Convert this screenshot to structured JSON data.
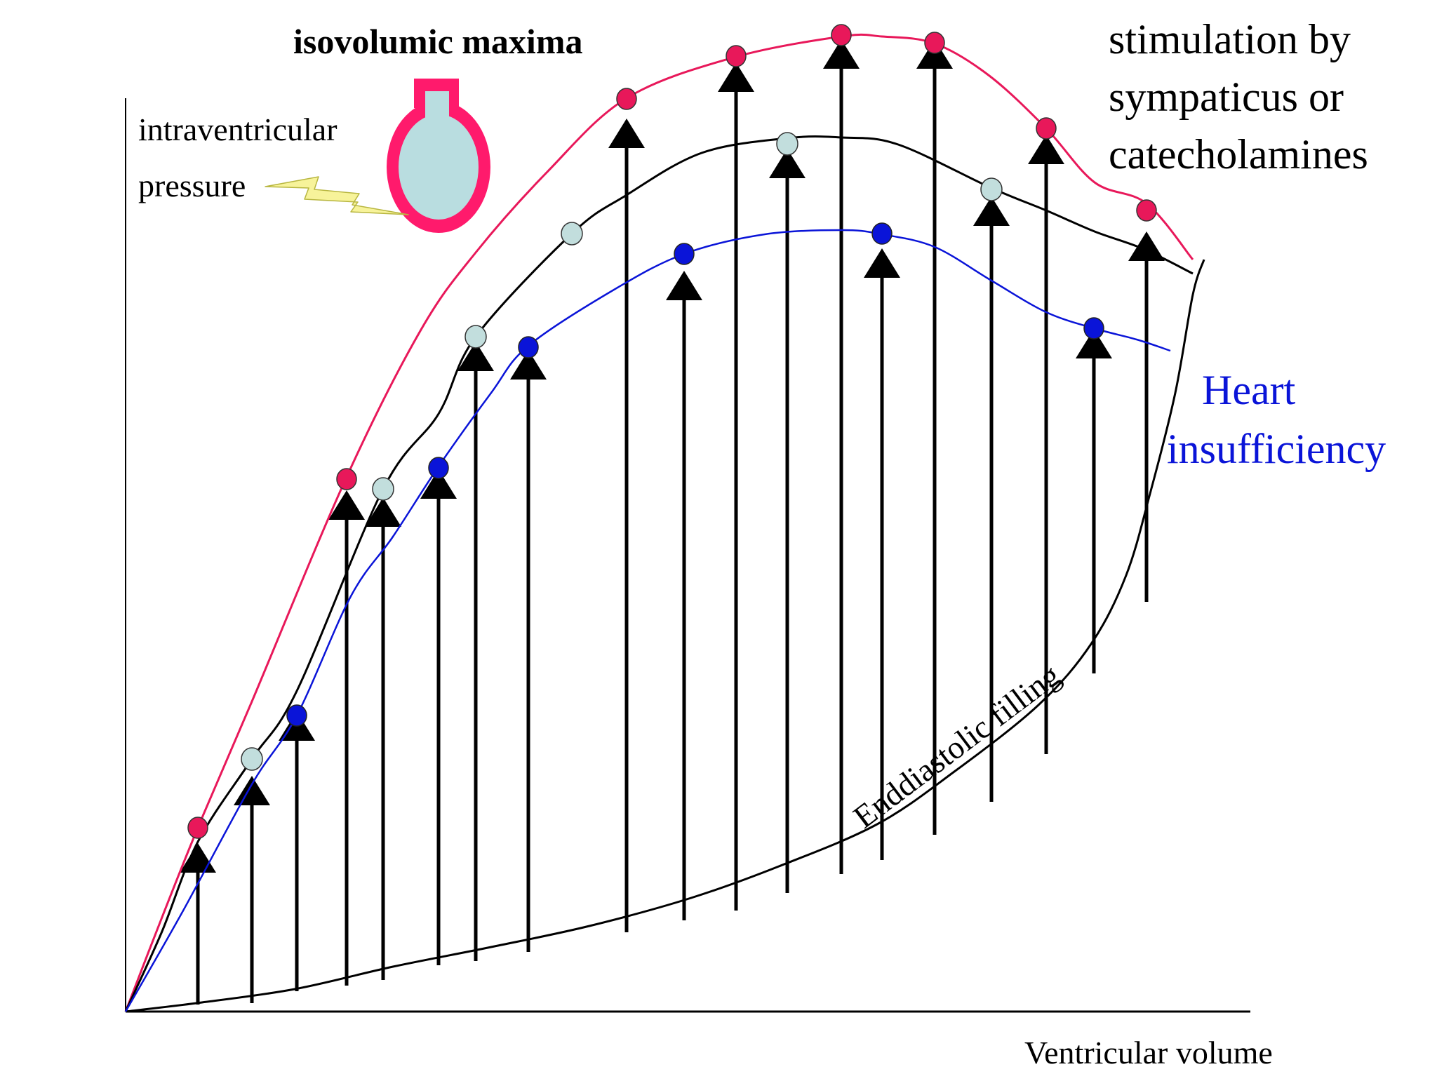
{
  "title": "isovolumic maxima",
  "y_axis_label": [
    "intraventricular",
    "pressure"
  ],
  "x_axis_label": "Ventricular volume",
  "annotations": {
    "stimulation": [
      "stimulation by",
      "sympaticus or",
      "catecholamines"
    ],
    "insufficiency": [
      "Heart",
      "insufficiency"
    ],
    "filling_curve": "Enddiastolic filling"
  },
  "colors": {
    "stimulation": "#e8185a",
    "normal_marker": "#c2dedd",
    "insufficiency": "#0a14d8",
    "arrows": "#000000",
    "heart_wall": "#ff1a6c",
    "heart_fill": "#b9dde0",
    "lightning": "#f7f39a"
  },
  "icons": {
    "heart_ventricle": "ventricle-icon",
    "pointer": "lightning-bolt-icon"
  }
}
